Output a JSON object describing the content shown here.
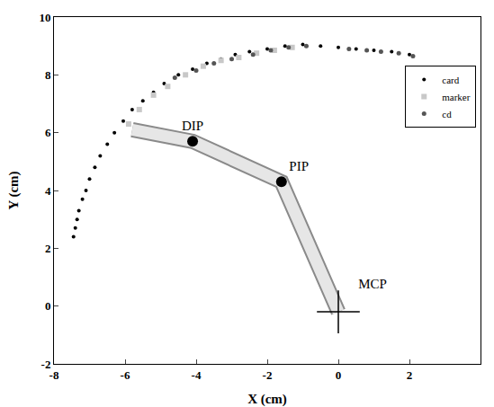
{
  "chart_data": {
    "type": "scatter",
    "x_label": "X (cm)",
    "y_label": "Y (cm)",
    "xlim": [
      -8,
      4
    ],
    "xticks": [
      -8,
      -6,
      -4,
      -2,
      0,
      2
    ],
    "ylim": [
      -2,
      10
    ],
    "yticks": [
      -2,
      0,
      2,
      4,
      6,
      8,
      10
    ],
    "legend": "upper right",
    "grid": false,
    "series": [
      {
        "name": "card",
        "color": "#000000",
        "marker": "circle",
        "x": [
          -7.45,
          -7.4,
          -7.35,
          -7.3,
          -7.2,
          -7.1,
          -7.0,
          -6.85,
          -6.7,
          -6.5,
          -6.3,
          -6.05,
          -5.8,
          -5.5,
          -5.2,
          -4.9,
          -4.5,
          -4.1,
          -3.7,
          -3.3,
          -2.9,
          -2.5,
          -2.0,
          -1.5,
          -1.0,
          -0.5,
          0.0,
          0.5,
          1.0,
          1.5,
          2.0
        ],
        "y": [
          2.4,
          2.7,
          3.0,
          3.3,
          3.7,
          4.0,
          4.4,
          4.8,
          5.2,
          5.6,
          6.0,
          6.4,
          6.8,
          7.1,
          7.4,
          7.7,
          8.0,
          8.2,
          8.4,
          8.55,
          8.7,
          8.8,
          8.9,
          9.0,
          9.05,
          9.0,
          8.95,
          8.9,
          8.85,
          8.8,
          8.7
        ]
      },
      {
        "name": "marker",
        "color": "#c8c8c8",
        "marker": "square",
        "x": [
          -5.9,
          -5.6,
          -5.2,
          -4.8,
          -4.3,
          -3.8,
          -3.3,
          -2.8,
          -2.3,
          -1.8,
          -1.3
        ],
        "y": [
          6.3,
          6.8,
          7.3,
          7.6,
          8.0,
          8.3,
          8.5,
          8.6,
          8.75,
          8.85,
          8.95
        ]
      },
      {
        "name": "cd",
        "color": "#555555",
        "marker": "circle",
        "x": [
          -4.6,
          -4.0,
          -3.5,
          -3.0,
          -2.4,
          -1.9,
          -1.4,
          -0.9,
          0.3,
          0.8,
          1.2,
          1.7,
          2.1
        ],
        "y": [
          7.9,
          8.15,
          8.4,
          8.55,
          8.7,
          8.85,
          8.95,
          9.0,
          8.9,
          8.85,
          8.8,
          8.75,
          8.65
        ]
      }
    ],
    "bones": {
      "x": [
        0.0,
        -1.6,
        -4.1,
        -5.8
      ],
      "y": [
        -0.2,
        4.3,
        5.7,
        6.1
      ]
    },
    "joints": [
      {
        "label": "DIP",
        "x": -4.1,
        "y": 5.7,
        "marker": "circle"
      },
      {
        "label": "PIP",
        "x": -1.6,
        "y": 4.3,
        "marker": "circle"
      },
      {
        "label": "MCP",
        "x": 0.0,
        "y": -0.2,
        "marker": "cross"
      }
    ]
  }
}
